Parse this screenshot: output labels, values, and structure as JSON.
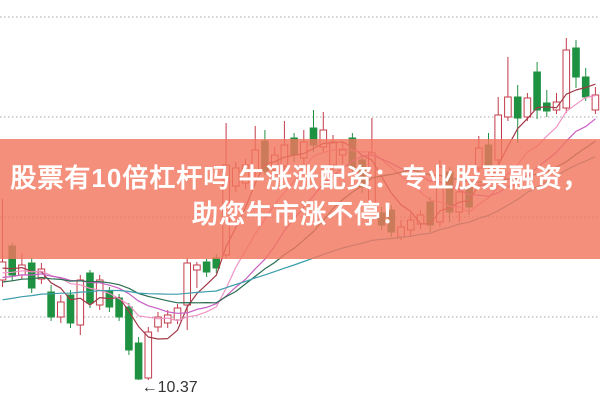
{
  "banner": {
    "line1": "股票有10倍杠杆吗 牛涨涨配资：专业股票融资，",
    "line2": "助您牛市涨不停！",
    "bg_rgba": "rgba(242,118,94,0.82)",
    "text_color": "#ffffff"
  },
  "chart_data": {
    "type": "candlestick",
    "title": "",
    "xlabel": "",
    "ylabel": "",
    "grid_on": true,
    "price_gridlines": [
      14,
      13,
      12,
      11
    ],
    "ylim": [
      10.0,
      14.2
    ],
    "up_color": "#c23b4a",
    "down_color": "#1f9242",
    "grid_color": "#a8a8a8",
    "background": "#ffffff",
    "low_label": {
      "arrow": "←",
      "text": "10.37",
      "color": "#333333"
    },
    "ma_lines": [
      {
        "period": 5,
        "color": "#a23848"
      },
      {
        "period": 10,
        "color": "#ef93c4"
      },
      {
        "period": 15,
        "color": "#c75fc3"
      },
      {
        "period": 20,
        "color": "#2a6e51"
      },
      {
        "period": 40,
        "color": "#3b9dab"
      }
    ],
    "candles": [
      [
        11.37,
        12.18,
        11.3,
        11.55
      ],
      [
        11.71,
        11.74,
        11.36,
        11.42
      ],
      [
        11.42,
        11.64,
        11.38,
        11.52
      ],
      [
        11.54,
        11.59,
        11.24,
        11.29
      ],
      [
        11.38,
        11.54,
        11.33,
        11.48
      ],
      [
        11.25,
        11.32,
        10.96,
        11.0
      ],
      [
        11.0,
        11.22,
        10.94,
        11.15
      ],
      [
        11.22,
        11.27,
        10.89,
        10.94
      ],
      [
        10.92,
        11.42,
        10.82,
        11.37
      ],
      [
        11.44,
        11.47,
        11.09,
        11.14
      ],
      [
        11.12,
        11.42,
        11.07,
        11.37
      ],
      [
        11.26,
        11.3,
        11.05,
        11.1
      ],
      [
        11.19,
        11.23,
        10.96,
        11.0
      ],
      [
        11.1,
        11.14,
        10.62,
        10.67
      ],
      [
        10.74,
        10.8,
        10.37,
        10.38
      ],
      [
        10.39,
        10.9,
        10.37,
        10.85
      ],
      [
        10.9,
        11.05,
        10.85,
        11.0
      ],
      [
        10.94,
        11.07,
        10.89,
        11.02
      ],
      [
        10.97,
        11.13,
        10.93,
        11.09
      ],
      [
        11.12,
        11.59,
        10.87,
        11.54
      ],
      [
        11.47,
        11.55,
        11.29,
        11.52
      ],
      [
        11.55,
        11.58,
        11.4,
        11.45
      ],
      [
        11.59,
        11.63,
        11.44,
        11.49
      ],
      [
        11.62,
        12.94,
        11.59,
        12.52
      ],
      [
        12.31,
        12.55,
        12.25,
        12.49
      ],
      [
        12.34,
        12.58,
        12.28,
        12.52
      ],
      [
        12.46,
        12.91,
        12.4,
        12.67
      ],
      [
        12.76,
        12.87,
        12.42,
        12.46
      ],
      [
        12.47,
        12.7,
        12.41,
        12.62
      ],
      [
        12.51,
        12.96,
        12.45,
        12.72
      ],
      [
        12.79,
        12.84,
        12.55,
        12.62
      ],
      [
        12.59,
        12.87,
        12.53,
        12.75
      ],
      [
        12.89,
        13.07,
        12.65,
        12.72
      ],
      [
        12.7,
        13.05,
        12.64,
        12.87
      ],
      [
        12.52,
        12.82,
        12.45,
        12.75
      ],
      [
        12.62,
        12.75,
        12.53,
        12.67
      ],
      [
        12.79,
        12.84,
        12.42,
        12.49
      ],
      [
        12.57,
        12.62,
        12.24,
        12.3
      ],
      [
        12.1,
        12.99,
        12.07,
        12.64
      ],
      [
        12.04,
        12.1,
        11.87,
        11.92
      ],
      [
        12.07,
        12.12,
        11.8,
        11.85
      ],
      [
        11.8,
        11.97,
        11.77,
        11.9
      ],
      [
        11.87,
        12.04,
        11.8,
        11.97
      ],
      [
        11.93,
        12.07,
        11.88,
        12.02
      ],
      [
        12.15,
        12.2,
        11.85,
        11.92
      ],
      [
        11.95,
        12.57,
        11.9,
        12.5
      ],
      [
        12.45,
        12.5,
        11.95,
        12.05
      ],
      [
        12.05,
        12.35,
        11.95,
        12.25
      ],
      [
        12.3,
        12.38,
        12.02,
        12.1
      ],
      [
        12.49,
        12.81,
        12.44,
        12.69
      ],
      [
        12.72,
        12.84,
        12.46,
        12.52
      ],
      [
        12.57,
        13.2,
        12.53,
        13.02
      ],
      [
        13.0,
        13.6,
        12.96,
        13.2
      ],
      [
        13.2,
        13.32,
        12.74,
        12.99
      ],
      [
        13.0,
        13.24,
        12.96,
        13.19
      ],
      [
        13.45,
        13.55,
        12.98,
        13.07
      ],
      [
        13.14,
        13.27,
        13.0,
        13.06
      ],
      [
        13.07,
        13.24,
        13.03,
        13.15
      ],
      [
        13.09,
        13.79,
        13.04,
        13.67
      ],
      [
        13.69,
        13.77,
        13.29,
        13.4
      ],
      [
        13.4,
        13.49,
        13.16,
        13.2
      ],
      [
        13.07,
        13.3,
        13.03,
        13.22
      ]
    ]
  }
}
